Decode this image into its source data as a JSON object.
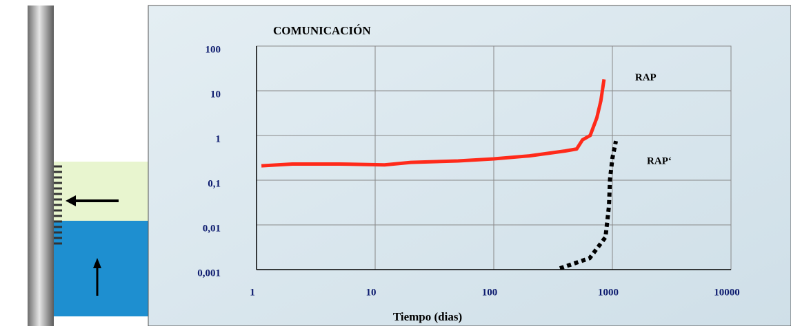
{
  "chart_data": {
    "type": "line",
    "title": "COMUNICACIÓN",
    "x_label": "Tiempo (dias)",
    "xscale": "log",
    "yscale": "log",
    "grid": true,
    "xlim": [
      1,
      10000
    ],
    "xticks": [
      1,
      10,
      100,
      1000,
      10000
    ],
    "ylim": [
      0.001,
      100
    ],
    "yticks": [
      {
        "value": 0.001,
        "label": "0,001"
      },
      {
        "value": 0.01,
        "label": "0,01"
      },
      {
        "value": 0.1,
        "label": "0,1"
      },
      1,
      10,
      100
    ],
    "series": [
      {
        "name": "RAP",
        "color": "#ff2a1a",
        "style": "solid",
        "x": [
          1.1,
          2,
          5,
          12,
          20,
          50,
          100,
          200,
          400,
          500,
          560,
          650,
          740,
          800,
          850
        ],
        "values": [
          0.21,
          0.23,
          0.23,
          0.22,
          0.25,
          0.27,
          0.3,
          0.35,
          0.45,
          0.5,
          0.8,
          1,
          2.5,
          6,
          18
        ]
      },
      {
        "name": "RAP‘",
        "color": "#000000",
        "style": "dotted",
        "x": [
          361,
          643,
          875,
          935,
          955,
          1000,
          1070
        ],
        "values": [
          0.00107,
          0.0018,
          0.0053,
          0.026,
          0.107,
          0.31,
          0.75
        ]
      }
    ]
  }
}
